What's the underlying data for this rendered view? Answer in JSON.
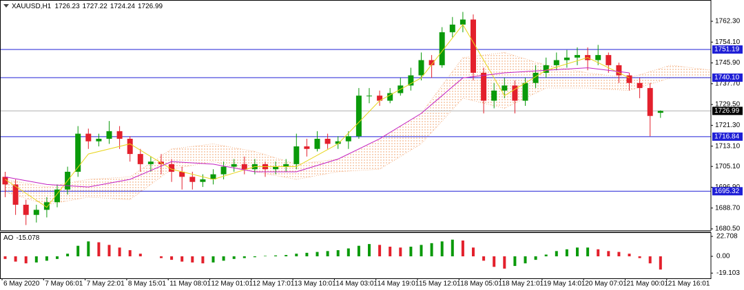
{
  "chart_data": {
    "type": "candlestick",
    "title": "XAUUSD,H1",
    "candles": {
      "open": [
        1701,
        1698,
        1690,
        1686,
        1688,
        1691,
        1696,
        1703,
        1718,
        1715,
        1716,
        1719,
        1716,
        1710,
        1706,
        1707,
        1706,
        1703,
        1701,
        1699,
        1700,
        1702,
        1705,
        1706,
        1704,
        1706,
        1704,
        1705,
        1706,
        1713,
        1712,
        1716,
        1714,
        1715,
        1717,
        1733,
        1733,
        1731,
        1734,
        1737,
        1741,
        1747,
        1745,
        1758,
        1761,
        1763,
        1742,
        1731,
        1735,
        1737,
        1731,
        1738,
        1742,
        1745,
        1747,
        1748,
        1749,
        1747,
        1749,
        1745,
        1741,
        1738,
        1736,
        1726.23
      ],
      "high": [
        1703,
        1700,
        1692,
        1690,
        1693,
        1698,
        1705,
        1721,
        1720,
        1718,
        1723,
        1721,
        1717,
        1712,
        1709,
        1710,
        1708,
        1705,
        1703,
        1702,
        1704,
        1707,
        1708,
        1709,
        1708,
        1707,
        1707,
        1708,
        1718,
        1716,
        1719,
        1718,
        1717,
        1719,
        1736,
        1736,
        1735,
        1736,
        1740,
        1744,
        1750,
        1749,
        1760,
        1764,
        1766,
        1765,
        1744,
        1738,
        1740,
        1739,
        1740,
        1745,
        1748,
        1750,
        1751,
        1752,
        1752,
        1753,
        1750,
        1746,
        1742,
        1740,
        1738,
        1727.22
      ],
      "low": [
        1693,
        1686,
        1682,
        1683,
        1685,
        1689,
        1694,
        1701,
        1712,
        1713,
        1714,
        1712,
        1707,
        1703,
        1703,
        1702,
        1699,
        1696,
        1696,
        1697,
        1698,
        1700,
        1703,
        1702,
        1702,
        1701,
        1702,
        1703,
        1704,
        1709,
        1711,
        1712,
        1712,
        1712,
        1716,
        1730,
        1729,
        1730,
        1733,
        1735,
        1739,
        1740,
        1744,
        1756,
        1758,
        1739,
        1726,
        1728,
        1732,
        1726,
        1729,
        1736,
        1740,
        1743,
        1744,
        1745,
        1743,
        1745,
        1742,
        1738,
        1735,
        1732,
        1717,
        1724.24
      ],
      "close": [
        1698,
        1690,
        1686,
        1688,
        1691,
        1696,
        1703,
        1718,
        1715,
        1716,
        1719,
        1716,
        1710,
        1706,
        1707,
        1706,
        1703,
        1701,
        1699,
        1700,
        1702,
        1705,
        1706,
        1704,
        1706,
        1704,
        1705,
        1706,
        1713,
        1712,
        1716,
        1714,
        1715,
        1717,
        1733,
        1733,
        1731,
        1734,
        1737,
        1741,
        1747,
        1745,
        1758,
        1761,
        1763,
        1742,
        1731,
        1735,
        1737,
        1731,
        1738,
        1742,
        1745,
        1747,
        1748,
        1749,
        1747,
        1749,
        1745,
        1741,
        1738,
        1736,
        1725,
        1726.99
      ]
    },
    "up_color": "#0a9a0a",
    "down_color": "#e3202c",
    "ylim": [
      1679.96,
      1770.7
    ],
    "yticks": [
      {
        "value": 1762.3,
        "label": "1762.30"
      },
      {
        "value": 1754.1,
        "label": "1754.10"
      },
      {
        "value": 1745.9,
        "label": "1745.90"
      },
      {
        "value": 1737.7,
        "label": "1737.70"
      },
      {
        "value": 1729.5,
        "label": "1729.50"
      },
      {
        "value": 1721.3,
        "label": "1721.30"
      },
      {
        "value": 1713.1,
        "label": "1713.10"
      },
      {
        "value": 1705.1,
        "label": "1705.10"
      },
      {
        "value": 1696.9,
        "label": "1696.90"
      },
      {
        "value": 1688.7,
        "label": "1688.70"
      },
      {
        "value": 1680.5,
        "label": "1680.50"
      }
    ],
    "levels": [
      1751.19,
      {
        "value": 1740.1,
        "label": "1740.10"
      },
      1716.84,
      1695.32
    ],
    "level_color": "#1f1fd6",
    "last_price": 1726.99,
    "x_labels": [
      "6 May 2020",
      "7 May 06:01",
      "7 May 22:01",
      "8 May 15:01",
      "11 May 08:01",
      "12 May 01:01",
      "12 May 17:01",
      "13 May 10:01",
      "14 May 03:01",
      "14 May 19:01",
      "15 May 12:01",
      "18 May 05:01",
      "18 May 21:01",
      "19 May 14:01",
      "20 May 07:01",
      "21 May 00:01",
      "21 May 16:01"
    ],
    "ma_fast": {
      "color": "#e8d51a",
      "x": [
        0,
        4,
        8,
        12,
        16,
        20,
        24,
        28,
        32,
        36,
        40,
        44,
        48,
        52,
        56,
        60
      ],
      "values": [
        1700,
        1689,
        1710,
        1714,
        1704,
        1700,
        1705,
        1705,
        1714,
        1731,
        1740,
        1761,
        1733,
        1743,
        1748,
        1740
      ]
    },
    "ma_slow": {
      "color": "#c21fc2",
      "x": [
        0,
        4,
        8,
        12,
        16,
        20,
        24,
        28,
        32,
        36,
        40,
        44,
        48,
        52,
        56,
        60
      ],
      "values": [
        1701,
        1698,
        1697,
        1700,
        1707,
        1706,
        1703,
        1703,
        1708,
        1716,
        1726,
        1740,
        1742,
        1743,
        1744,
        1742
      ]
    },
    "cloud": {
      "color": "#ee9050",
      "x": [
        0,
        4,
        8,
        12,
        16,
        20,
        24,
        28,
        32,
        36,
        40,
        44,
        48,
        52,
        56,
        60,
        64,
        68
      ],
      "upper": [
        1700,
        1697,
        1700,
        1701,
        1712,
        1714,
        1711,
        1706,
        1708,
        1716,
        1726,
        1748,
        1750,
        1745,
        1742,
        1740,
        1745,
        1743
      ],
      "lower": [
        1695,
        1690,
        1693,
        1692,
        1704,
        1707,
        1703,
        1700,
        1703,
        1704,
        1714,
        1732,
        1728,
        1736,
        1736,
        1735,
        1740,
        1740
      ]
    },
    "ao": {
      "title": "AO",
      "values": [
        -3,
        -6,
        -8,
        -7,
        -5,
        -3,
        3,
        12,
        17,
        16,
        13,
        10,
        7,
        3,
        0,
        -2,
        -4,
        -6,
        -7,
        -8,
        -7,
        -5,
        -3,
        -2,
        -1,
        0.5,
        1,
        1.5,
        3,
        4,
        5,
        6,
        7,
        9,
        12,
        14,
        13,
        11,
        10,
        11,
        13,
        15,
        17,
        19,
        18,
        10,
        -5,
        -12,
        -14,
        -11,
        -8,
        -4,
        2,
        6,
        8,
        10,
        10,
        8,
        6,
        5,
        3,
        -2,
        -8,
        -15.078
      ],
      "ylim": [
        -25.06,
        27.4
      ],
      "yticks": [
        22.708,
        {
          "value": 0,
          "label": "0.00"
        },
        -19.103
      ],
      "up_color": "#0a9a0a",
      "down_color": "#e3202c"
    }
  }
}
